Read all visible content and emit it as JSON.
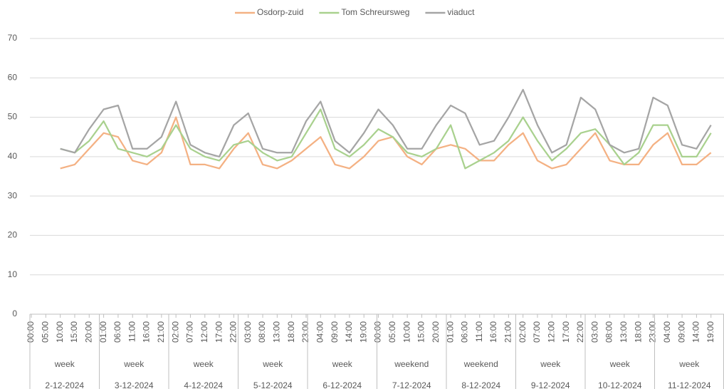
{
  "chart_data": {
    "type": "line",
    "groups": [
      {
        "label": "week",
        "date": "2-12-2024",
        "categories": [
          "00:00",
          "05:00",
          "10:00",
          "15:00",
          "20:00"
        ]
      },
      {
        "label": "week",
        "date": "3-12-2024",
        "categories": [
          "01:00",
          "06:00",
          "11:00",
          "16:00",
          "21:00"
        ]
      },
      {
        "label": "week",
        "date": "4-12-2024",
        "categories": [
          "02:00",
          "07:00",
          "12:00",
          "17:00",
          "22:00"
        ]
      },
      {
        "label": "week",
        "date": "5-12-2024",
        "categories": [
          "03:00",
          "08:00",
          "13:00",
          "18:00",
          "23:00"
        ]
      },
      {
        "label": "week",
        "date": "6-12-2024",
        "categories": [
          "04:00",
          "09:00",
          "14:00",
          "19:00"
        ]
      },
      {
        "label": "weekend",
        "date": "7-12-2024",
        "categories": [
          "00:00",
          "05:00",
          "10:00",
          "15:00",
          "20:00"
        ]
      },
      {
        "label": "weekend",
        "date": "8-12-2024",
        "categories": [
          "01:00",
          "06:00",
          "11:00",
          "16:00",
          "21:00"
        ]
      },
      {
        "label": "week",
        "date": "9-12-2024",
        "categories": [
          "02:00",
          "07:00",
          "12:00",
          "17:00",
          "22:00"
        ]
      },
      {
        "label": "week",
        "date": "10-12-2024",
        "categories": [
          "03:00",
          "08:00",
          "13:00",
          "18:00",
          "23:00"
        ]
      },
      {
        "label": "week",
        "date": "11-12-2024",
        "categories": [
          "04:00",
          "09:00",
          "14:00",
          "19:00"
        ]
      }
    ],
    "series": [
      {
        "name": "Osdorp-zuid",
        "color": "#f4b183",
        "values": [
          null,
          null,
          37,
          38,
          42,
          46,
          45,
          39,
          38,
          41,
          50,
          38,
          38,
          37,
          42,
          46,
          38,
          37,
          39,
          42,
          45,
          38,
          37,
          40,
          44,
          45,
          40,
          38,
          42,
          43,
          42,
          39,
          39,
          43,
          46,
          39,
          37,
          38,
          42,
          46,
          39,
          38,
          38,
          43,
          46,
          38,
          38,
          41
        ]
      },
      {
        "name": "Tom Schreursweg",
        "color": "#a9d18e",
        "values": [
          null,
          null,
          42,
          41,
          44,
          49,
          42,
          41,
          40,
          42,
          48,
          42,
          40,
          39,
          43,
          44,
          41,
          39,
          40,
          46,
          52,
          42,
          40,
          43,
          47,
          45,
          41,
          40,
          42,
          48,
          37,
          39,
          41,
          44,
          50,
          44,
          39,
          42,
          46,
          47,
          43,
          38,
          41,
          48,
          48,
          40,
          40,
          46
        ]
      },
      {
        "name": "viaduct",
        "color": "#a5a5a5",
        "values": [
          null,
          null,
          42,
          41,
          47,
          52,
          53,
          42,
          42,
          45,
          54,
          43,
          41,
          40,
          48,
          51,
          42,
          41,
          41,
          49,
          54,
          44,
          41,
          46,
          52,
          48,
          42,
          42,
          48,
          53,
          51,
          43,
          44,
          50,
          57,
          48,
          41,
          43,
          55,
          52,
          43,
          41,
          42,
          55,
          53,
          43,
          42,
          48
        ]
      }
    ],
    "ylim": [
      0,
      70
    ],
    "yticks": [
      0,
      10,
      20,
      30,
      40,
      50,
      60,
      70
    ],
    "grid": true,
    "legend": "top"
  }
}
